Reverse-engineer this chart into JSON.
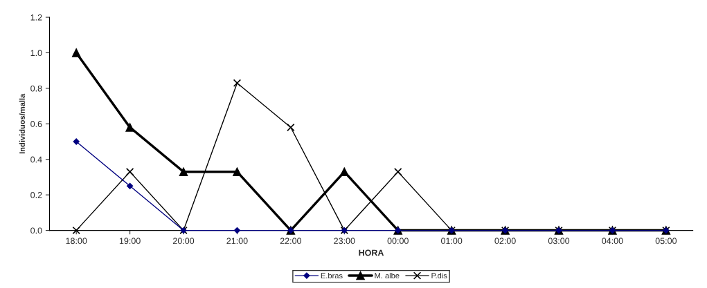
{
  "chart_data": {
    "type": "line",
    "xlabel": "HORA",
    "ylabel": "Individuos/malla",
    "categories": [
      "18:00",
      "19:00",
      "20:00",
      "21:00",
      "22:00",
      "23:00",
      "00:00",
      "01:00",
      "02:00",
      "03:00",
      "04:00",
      "05:00"
    ],
    "series": [
      {
        "name": "E.bras",
        "color": "#000080",
        "marker": "diamond",
        "values": [
          0.5,
          0.25,
          0,
          0,
          0,
          0,
          0,
          0,
          0,
          0,
          0,
          0
        ]
      },
      {
        "name": "M. albe",
        "color": "#000000",
        "marker": "triangle",
        "values": [
          1.0,
          0.58,
          0.33,
          0.33,
          0,
          0.33,
          0,
          0,
          0,
          0,
          0,
          0
        ]
      },
      {
        "name": "P.dis",
        "color": "#000000",
        "marker": "cross",
        "values": [
          0,
          0.33,
          0,
          0.83,
          0.58,
          0,
          0.33,
          0,
          0,
          0,
          0,
          0
        ]
      }
    ],
    "ylim": [
      0,
      1.2
    ],
    "yticks": [
      {
        "value": 0,
        "label": "0.0"
      },
      {
        "value": 0.2,
        "label": "0.2"
      },
      {
        "value": 0.4,
        "label": "0.4"
      },
      {
        "value": 0.6,
        "label": "0.6"
      },
      {
        "value": 0.8,
        "label": "0.8"
      },
      {
        "value": 1.0,
        "label": "1.0"
      },
      {
        "value": 1.2,
        "label": "1.2"
      }
    ],
    "grid": false,
    "legend": "bottom",
    "line_style": "solid"
  }
}
